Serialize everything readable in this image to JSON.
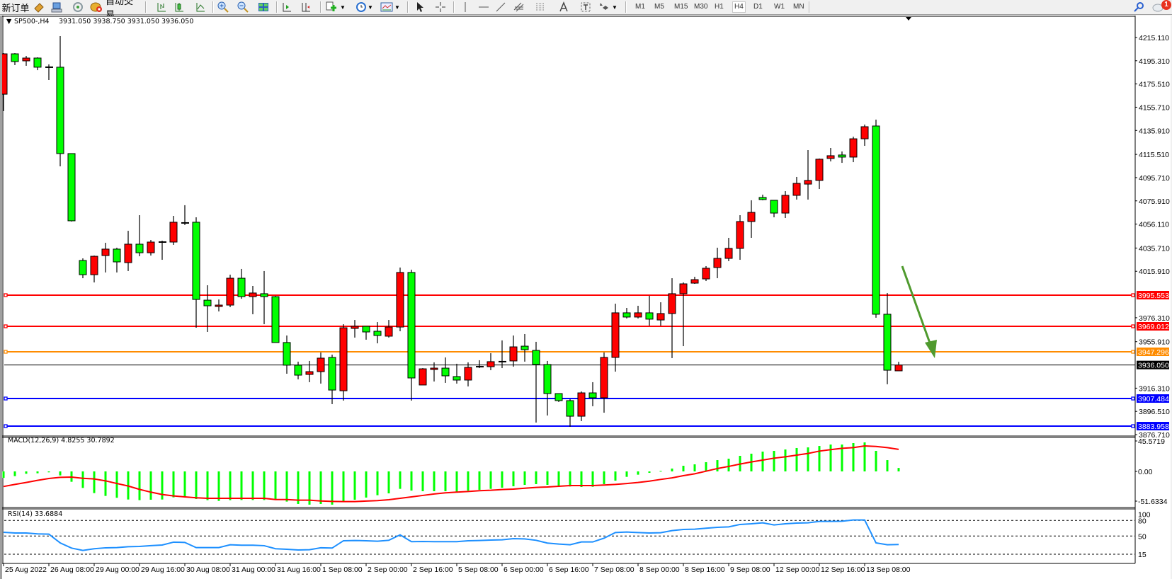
{
  "toolbar": {
    "new_order": "新订单",
    "auto_trading": "自动交易",
    "timeframes": [
      "M1",
      "M5",
      "M15",
      "M30",
      "H1",
      "H4",
      "D1",
      "W1",
      "MN"
    ],
    "active_timeframe": "H4",
    "notification_count": "1"
  },
  "chart": {
    "symbol": "SP500-,H4",
    "ohlc_readout": "3931.050 3938.750 3931.050 3936.050"
  },
  "price_axis": {
    "ticks": [
      "4215.110",
      "4195.310",
      "4175.510",
      "4155.710",
      "4135.910",
      "4115.510",
      "4095.710",
      "4075.910",
      "4056.110",
      "4035.710",
      "4015.910",
      "3976.310",
      "3955.910",
      "3916.310",
      "3896.510",
      "3876.710"
    ]
  },
  "horizontal_lines": [
    {
      "price": "3995.553",
      "color": "#ff0000"
    },
    {
      "price": "3969.012",
      "color": "#ff0000"
    },
    {
      "price": "3947.296",
      "color": "#ff8c00"
    },
    {
      "price": "3907.484",
      "color": "#0000ff"
    },
    {
      "price": "3883.958",
      "color": "#0000ff"
    }
  ],
  "bid_line": {
    "price": "3936.050",
    "color": "#000000"
  },
  "annotation_arrow": {
    "color": "#4f9a2e",
    "direction": "down"
  },
  "macd": {
    "label": "MACD(12,26,9) 4.8255 30.7892",
    "axis": [
      "45.5719",
      "0.00",
      "-51.6334"
    ],
    "histogram_color": "#00ff00",
    "signal_color": "#ff0000"
  },
  "rsi": {
    "label": "RSI(14) 33.6884",
    "axis": [
      "100",
      "80",
      "50",
      "15"
    ],
    "levels": [
      80,
      50,
      15
    ],
    "color": "#1e90ff"
  },
  "time_axis": [
    "25 Aug 2022",
    "26 Aug 08:00",
    "29 Aug 00:00",
    "29 Aug 16:00",
    "30 Aug 08:00",
    "31 Aug 00:00",
    "31 Aug 16:00",
    "1 Sep 08:00",
    "2 Sep 00:00",
    "2 Sep 16:00",
    "5 Sep 08:00",
    "6 Sep 00:00",
    "6 Sep 16:00",
    "7 Sep 08:00",
    "8 Sep 00:00",
    "8 Sep 16:00",
    "9 Sep 08:00",
    "12 Sep 00:00",
    "12 Sep 16:00",
    "13 Sep 08:00"
  ],
  "chart_data": {
    "type": "candlestick",
    "symbol": "SP500-",
    "timeframe": "H4",
    "up_color": "#ff0000",
    "down_color": "#00ff00",
    "ylim": [
      3876.71,
      4215.11
    ],
    "grid": false,
    "fields": [
      "open",
      "high",
      "low",
      "close"
    ],
    "candles": [
      [
        4166.8,
        4201.8,
        4152.4,
        4201.2
      ],
      [
        4201.2,
        4201.8,
        4191.6,
        4194.6
      ],
      [
        4195.2,
        4199.4,
        4191.0,
        4197.6
      ],
      [
        4197.6,
        4198.2,
        4187.3,
        4189.8
      ],
      [
        4189.8,
        4192.2,
        4178.9,
        4189.8
      ],
      [
        4189.8,
        4216.3,
        4105.3,
        4116.2
      ],
      [
        4116.2,
        4116.2,
        4058.3,
        4058.9
      ],
      [
        4025.1,
        4026.9,
        4010.0,
        4013.0
      ],
      [
        4013.0,
        4029.3,
        4006.4,
        4028.7
      ],
      [
        4029.3,
        4040.2,
        4014.9,
        4034.8
      ],
      [
        4034.8,
        4036.0,
        4014.9,
        4023.9
      ],
      [
        4023.3,
        4050.4,
        4016.1,
        4039.0
      ],
      [
        4039.0,
        4063.7,
        4028.7,
        4031.7
      ],
      [
        4031.7,
        4042.6,
        4029.3,
        4040.8
      ],
      [
        4040.8,
        4042.0,
        4025.7,
        4040.8
      ],
      [
        4040.8,
        4063.1,
        4038.4,
        4057.7
      ],
      [
        4057.1,
        4072.2,
        4055.3,
        4057.1
      ],
      [
        4057.7,
        4061.9,
        3967.8,
        3991.9
      ],
      [
        3991.3,
        4004.0,
        3964.2,
        3986.5
      ],
      [
        3985.9,
        3991.9,
        3981.7,
        3987.1
      ],
      [
        3987.1,
        4013.0,
        3985.3,
        4010.0
      ],
      [
        4010.0,
        4017.9,
        3992.5,
        3994.3
      ],
      [
        3994.3,
        4003.4,
        3979.3,
        3997.4
      ],
      [
        3996.8,
        4016.1,
        3970.8,
        3994.3
      ],
      [
        3994.3,
        3995.0,
        3955.2,
        3955.2
      ],
      [
        3955.2,
        3961.2,
        3928.6,
        3935.9
      ],
      [
        3935.9,
        3938.9,
        3923.8,
        3927.4
      ],
      [
        3928.0,
        3939.5,
        3921.4,
        3930.4
      ],
      [
        3930.4,
        3946.7,
        3920.2,
        3941.9
      ],
      [
        3942.5,
        3944.9,
        3902.7,
        3914.7
      ],
      [
        3914.1,
        3970.8,
        3905.7,
        3967.8
      ],
      [
        3967.2,
        3974.4,
        3959.4,
        3969.0
      ],
      [
        3969.0,
        3969.0,
        3957.6,
        3964.2
      ],
      [
        3964.8,
        3972.6,
        3954.5,
        3961.2
      ],
      [
        3960.6,
        3974.4,
        3959.4,
        3968.4
      ],
      [
        3968.4,
        4019.1,
        3964.8,
        4014.9
      ],
      [
        4014.9,
        4017.3,
        3905.7,
        3925.0
      ],
      [
        3919.0,
        3933.4,
        3919.0,
        3932.8
      ],
      [
        3932.2,
        3938.3,
        3922.0,
        3933.4
      ],
      [
        3933.4,
        3942.5,
        3920.8,
        3926.8
      ],
      [
        3926.2,
        3937.1,
        3920.2,
        3923.2
      ],
      [
        3923.2,
        3938.3,
        3917.8,
        3934.0
      ],
      [
        3934.6,
        3940.1,
        3933.4,
        3934.6
      ],
      [
        3934.6,
        3946.1,
        3931.6,
        3938.9
      ],
      [
        3938.9,
        3957.0,
        3933.4,
        3938.9
      ],
      [
        3939.5,
        3961.2,
        3934.6,
        3951.5
      ],
      [
        3952.1,
        3962.4,
        3938.9,
        3949.1
      ],
      [
        3948.5,
        3955.8,
        3887.0,
        3936.5
      ],
      [
        3936.5,
        3939.5,
        3893.0,
        3911.7
      ],
      [
        3911.7,
        3911.7,
        3904.5,
        3905.7
      ],
      [
        3905.7,
        3906.9,
        3883.4,
        3892.4
      ],
      [
        3892.4,
        3913.5,
        3888.2,
        3912.3
      ],
      [
        3912.3,
        3921.4,
        3900.9,
        3908.1
      ],
      [
        3908.1,
        3946.7,
        3895.4,
        3942.5
      ],
      [
        3942.5,
        3988.3,
        3930.4,
        3980.5
      ],
      [
        3980.5,
        3984.7,
        3975.7,
        3976.9
      ],
      [
        3976.9,
        3986.5,
        3975.7,
        3980.5
      ],
      [
        3980.5,
        3995.0,
        3969.6,
        3975.1
      ],
      [
        3974.4,
        3989.5,
        3969.6,
        3979.9
      ],
      [
        3979.9,
        4010.0,
        3941.9,
        3996.8
      ],
      [
        3996.8,
        4006.4,
        3952.1,
        4005.2
      ],
      [
        4005.8,
        4011.2,
        4005.2,
        4008.8
      ],
      [
        4009.4,
        4020.3,
        4007.6,
        4018.5
      ],
      [
        4019.1,
        4036.0,
        4010.0,
        4026.9
      ],
      [
        4026.9,
        4044.4,
        4024.5,
        4035.4
      ],
      [
        4035.4,
        4063.7,
        4025.7,
        4058.3
      ],
      [
        4058.3,
        4076.4,
        4044.4,
        4066.1
      ],
      [
        4078.8,
        4081.2,
        4076.4,
        4077.0
      ],
      [
        4076.4,
        4076.4,
        4061.9,
        4065.5
      ],
      [
        4065.5,
        4084.2,
        4061.3,
        4080.6
      ],
      [
        4080.6,
        4096.3,
        4077.0,
        4090.8
      ],
      [
        4090.2,
        4119.2,
        4077.0,
        4093.3
      ],
      [
        4093.3,
        4112.0,
        4086.0,
        4111.4
      ],
      [
        4112.0,
        4121.0,
        4109.5,
        4114.4
      ],
      [
        4115.0,
        4118.0,
        4108.3,
        4113.2
      ],
      [
        4113.2,
        4130.6,
        4108.9,
        4128.8
      ],
      [
        4128.8,
        4140.9,
        4122.8,
        4139.1
      ],
      [
        4139.7,
        4145.1,
        3976.3,
        3979.3
      ],
      [
        3979.3,
        3997.4,
        3919.6,
        3931.6
      ],
      [
        3931.05,
        3938.75,
        3931.05,
        3936.05
      ]
    ],
    "macd_histogram": [
      -9.0,
      -6.6,
      -3.3,
      -2.6,
      -1.3,
      -5.6,
      -14.5,
      -23.1,
      -30.3,
      -34.3,
      -36.9,
      -39.3,
      -40.2,
      -39.6,
      -39.3,
      -36.3,
      -36.3,
      -38.6,
      -40.2,
      -41.3,
      -40.2,
      -40.0,
      -40.0,
      -40.0,
      -40.0,
      -42.2,
      -45.5,
      -46.5,
      -45.5,
      -46.5,
      -41.5,
      -39.6,
      -36.6,
      -33.3,
      -30.7,
      -24.4,
      -26.8,
      -27.7,
      -27.7,
      -27.7,
      -28.3,
      -27.0,
      -25.7,
      -24.4,
      -22.8,
      -20.8,
      -18.8,
      -17.8,
      -18.8,
      -19.8,
      -21.1,
      -21.8,
      -21.5,
      -17.8,
      -12.9,
      -7.6,
      -4.6,
      -2.0,
      0.7,
      4.0,
      7.9,
      9.9,
      12.9,
      15.8,
      17.8,
      21.8,
      24.8,
      27.7,
      28.7,
      30.7,
      32.7,
      33.6,
      35.6,
      37.6,
      37.6,
      39.6,
      40.6,
      28.7,
      15.8,
      4.83
    ],
    "macd_signal": [
      -21.1,
      -18.2,
      -15.5,
      -12.5,
      -9.9,
      -8.3,
      -7.9,
      -9.6,
      -10.5,
      -13.2,
      -16.9,
      -20.4,
      -25.1,
      -29.0,
      -32.3,
      -34.3,
      -35.6,
      -36.9,
      -37.6,
      -37.6,
      -37.6,
      -37.6,
      -37.6,
      -37.6,
      -39.3,
      -39.3,
      -40.2,
      -40.2,
      -41.3,
      -41.9,
      -42.2,
      -42.2,
      -41.5,
      -40.9,
      -39.6,
      -37.6,
      -35.6,
      -33.6,
      -31.6,
      -30.0,
      -29.0,
      -28.1,
      -27.0,
      -26.4,
      -25.4,
      -24.8,
      -23.5,
      -22.4,
      -21.8,
      -20.8,
      -19.8,
      -19.8,
      -19.8,
      -19.1,
      -18.2,
      -16.9,
      -15.5,
      -13.6,
      -11.2,
      -9.0,
      -5.9,
      -3.3,
      0.3,
      4.0,
      7.0,
      10.3,
      13.2,
      15.8,
      18.5,
      20.4,
      22.8,
      25.1,
      28.4,
      30.4,
      32.3,
      33.3,
      35.6,
      34.9,
      33.3,
      30.79
    ],
    "macd_ylim": [
      -51.6334,
      45.5719
    ],
    "rsi": [
      57.3,
      55.9,
      55.9,
      54.1,
      53.6,
      36.8,
      26.8,
      22.3,
      25.5,
      27.3,
      27.7,
      29.5,
      30.0,
      31.4,
      32.7,
      38.2,
      37.7,
      27.7,
      27.7,
      27.7,
      33.2,
      32.3,
      32.3,
      31.4,
      25.5,
      24.5,
      23.2,
      23.6,
      27.3,
      26.8,
      40.9,
      41.4,
      40.9,
      40.0,
      41.8,
      52.3,
      39.1,
      39.5,
      39.1,
      39.1,
      39.1,
      40.9,
      41.4,
      42.3,
      42.7,
      45.0,
      44.5,
      41.8,
      36.4,
      34.5,
      33.2,
      38.6,
      38.6,
      45.9,
      56.8,
      57.7,
      56.8,
      55.9,
      56.4,
      60.5,
      62.7,
      63.2,
      65.0,
      66.8,
      67.7,
      72.3,
      73.6,
      75.5,
      71.4,
      73.6,
      75.0,
      75.5,
      78.2,
      78.2,
      78.6,
      80.9,
      80.9,
      36.8,
      33.2,
      33.69
    ],
    "rsi_ylim": [
      0,
      100
    ]
  }
}
